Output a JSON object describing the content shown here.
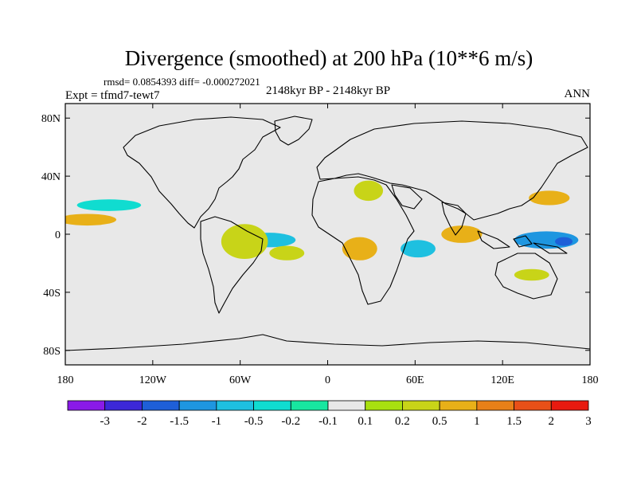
{
  "chart_data": {
    "type": "heatmap",
    "title": "Divergence (smoothed) at 200 hPa (10**6 m/s)",
    "stats_line": "rmsd= 0.0854393 diff= -0.000272021",
    "experiment": "Expt = tfmd7-tewt7",
    "period": "2148kyr BP - 2148kyr BP",
    "season": "ANN",
    "x_ticks": [
      "180",
      "120W",
      "60W",
      "0",
      "60E",
      "120E",
      "180"
    ],
    "x_tick_values": [
      -180,
      -120,
      -60,
      0,
      60,
      120,
      180
    ],
    "y_ticks": [
      "80N",
      "40N",
      "0",
      "40S",
      "80S"
    ],
    "y_tick_values": [
      80,
      40,
      0,
      -40,
      -80
    ],
    "xlim": [
      -180,
      180
    ],
    "ylim": [
      -90,
      90
    ],
    "colorbar": {
      "labels": [
        "-3",
        "-2",
        "-1.5",
        "-1",
        "-0.5",
        "-0.2",
        "-0.1",
        "0.1",
        "0.2",
        "0.5",
        "1",
        "1.5",
        "2",
        "3"
      ],
      "colors": [
        "#8a1ae8",
        "#3c28d8",
        "#1e5fd8",
        "#1e96e0",
        "#1ec0e0",
        "#10dcd0",
        "#18e6a0",
        "#e8e8e8",
        "#a8e010",
        "#c8d418",
        "#e8b018",
        "#e88018",
        "#e85018",
        "#e81a10"
      ]
    },
    "regions": [
      {
        "name": "Atlantic tropical convergence",
        "lon": -40,
        "lat": -4,
        "rx": 18,
        "ry": 5,
        "level": "-0.5"
      },
      {
        "name": "Brazil divergence",
        "lon": -57,
        "lat": -5,
        "rx": 16,
        "ry": 12,
        "level": "0.2"
      },
      {
        "name": "South Atlantic divergence",
        "lon": -28,
        "lat": -13,
        "rx": 12,
        "ry": 5,
        "level": "0.2"
      },
      {
        "name": "Central Africa divergence",
        "lon": 22,
        "lat": -10,
        "rx": 12,
        "ry": 8,
        "level": "0.5"
      },
      {
        "name": "Mediterranean divergence",
        "lon": 28,
        "lat": 30,
        "rx": 10,
        "ry": 7,
        "level": "0.2"
      },
      {
        "name": "East Pacific convergence",
        "lon": -150,
        "lat": 20,
        "rx": 22,
        "ry": 4,
        "level": "-0.2"
      },
      {
        "name": "Central Pacific divergence",
        "lon": -165,
        "lat": 10,
        "rx": 20,
        "ry": 4,
        "level": "0.5"
      },
      {
        "name": "Indian Ocean divergence",
        "lon": 92,
        "lat": 0,
        "rx": 14,
        "ry": 6,
        "level": "0.5"
      },
      {
        "name": "Indian Ocean convergence",
        "lon": 62,
        "lat": -10,
        "rx": 12,
        "ry": 6,
        "level": "-0.5"
      },
      {
        "name": "West Pacific convergence",
        "lon": 150,
        "lat": -4,
        "rx": 22,
        "ry": 6,
        "level": "-1"
      },
      {
        "name": "West Pacific peak convergence",
        "lon": 162,
        "lat": -5,
        "rx": 6,
        "ry": 3,
        "level": "-1.5"
      },
      {
        "name": "Northwest Pacific divergence",
        "lon": 152,
        "lat": 25,
        "rx": 14,
        "ry": 5,
        "level": "0.5"
      },
      {
        "name": "Southern Pacific divergence",
        "lon": 140,
        "lat": -28,
        "rx": 12,
        "ry": 4,
        "level": "0.2"
      }
    ]
  }
}
